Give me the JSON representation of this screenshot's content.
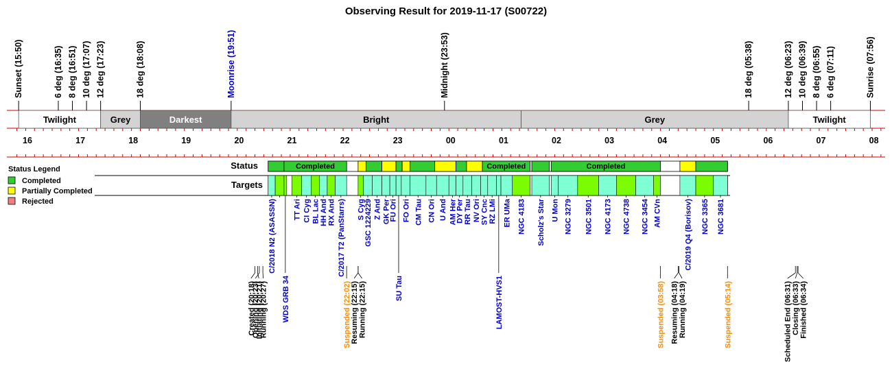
{
  "chart_data": {
    "type": "timeline",
    "title": "Observing Result for 2019-11-17 (S00722)",
    "night_events": [
      {
        "label": "Sunset (15:50)",
        "time": "15:50",
        "color": "#000000"
      },
      {
        "label": "6 deg (16:35)",
        "time": "16:35",
        "color": "#000000"
      },
      {
        "label": "8 deg (16:51)",
        "time": "16:51",
        "color": "#000000"
      },
      {
        "label": "10 deg (17:07)",
        "time": "17:07",
        "color": "#000000"
      },
      {
        "label": "12 deg (17:23)",
        "time": "17:23",
        "color": "#000000"
      },
      {
        "label": "18 deg (18:08)",
        "time": "18:08",
        "color": "#000000"
      },
      {
        "label": "Moonrise (19:51)",
        "time": "19:51",
        "color": "#0000cc"
      },
      {
        "label": "Midnight (23:53)",
        "time": "23:53",
        "color": "#000000"
      },
      {
        "label": "18 deg (05:38)",
        "time": "29:38",
        "color": "#000000"
      },
      {
        "label": "12 deg (06:23)",
        "time": "30:23",
        "color": "#000000"
      },
      {
        "label": "10 deg (06:39)",
        "time": "30:39",
        "color": "#000000"
      },
      {
        "label": "8 deg (06:55)",
        "time": "30:55",
        "color": "#000000"
      },
      {
        "label": "6 deg (07:11)",
        "time": "31:11",
        "color": "#000000"
      },
      {
        "label": "Sunrise (07:56)",
        "time": "31:56",
        "color": "#000000"
      }
    ],
    "sky_bands": [
      {
        "label": "Twilight",
        "start": "15:50",
        "end": "17:23",
        "color": "#ffffff",
        "text_color": "#000000"
      },
      {
        "label": "Grey",
        "start": "17:23",
        "end": "18:08",
        "color": "#d3d3d3",
        "text_color": "#000000"
      },
      {
        "label": "Darkest",
        "start": "18:08",
        "end": "19:51",
        "color": "#808080",
        "text_color": "#ffffff"
      },
      {
        "label": "Bright",
        "start": "19:51",
        "end": "25:20",
        "color": "#d3d3d3",
        "text_color": "#000000"
      },
      {
        "label": "Grey",
        "start": "25:20",
        "end": "30:23",
        "color": "#d3d3d3",
        "text_color": "#000000"
      },
      {
        "label": "Twilight",
        "start": "30:23",
        "end": "31:56",
        "color": "#ffffff",
        "text_color": "#000000"
      }
    ],
    "hour_ticks": [
      "16",
      "17",
      "18",
      "19",
      "20",
      "21",
      "22",
      "23",
      "00",
      "01",
      "02",
      "03",
      "04",
      "05",
      "06",
      "07",
      "08"
    ],
    "row_labels": {
      "status": "Status",
      "targets": "Targets"
    },
    "legend": {
      "title": "Status Legend",
      "items": [
        {
          "label": "Completed",
          "color": "#33cc33"
        },
        {
          "label": "Partially Completed",
          "color": "#ffff00"
        },
        {
          "label": "Rejected",
          "color": "#f08080"
        }
      ]
    },
    "status_segments": [
      {
        "start": "20:33",
        "end": "20:51",
        "status": "completed",
        "label": ""
      },
      {
        "start": "20:51",
        "end": "22:02",
        "status": "completed",
        "label": "Completed"
      },
      {
        "start": "22:15",
        "end": "22:24",
        "status": "partial",
        "label": ""
      },
      {
        "start": "22:24",
        "end": "22:42",
        "status": "completed",
        "label": ""
      },
      {
        "start": "22:42",
        "end": "22:58",
        "status": "partial",
        "label": ""
      },
      {
        "start": "22:58",
        "end": "23:05",
        "status": "completed",
        "label": ""
      },
      {
        "start": "23:05",
        "end": "23:14",
        "status": "partial",
        "label": ""
      },
      {
        "start": "23:14",
        "end": "23:42",
        "status": "completed",
        "label": ""
      },
      {
        "start": "23:42",
        "end": "24:06",
        "status": "partial",
        "label": ""
      },
      {
        "start": "24:06",
        "end": "24:18",
        "status": "completed",
        "label": ""
      },
      {
        "start": "24:18",
        "end": "24:36",
        "status": "partial",
        "label": ""
      },
      {
        "start": "24:36",
        "end": "25:30",
        "status": "completed",
        "label": "Completed"
      },
      {
        "start": "25:32",
        "end": "25:52",
        "status": "completed",
        "label": ""
      },
      {
        "start": "25:54",
        "end": "27:58",
        "status": "completed",
        "label": "Completed"
      },
      {
        "start": "28:20",
        "end": "28:38",
        "status": "partial",
        "label": ""
      },
      {
        "start": "28:38",
        "end": "29:14",
        "status": "completed",
        "label": ""
      }
    ],
    "targets": [
      {
        "name": "C/2018 N2 (ASASSN)",
        "start": "20:33",
        "end": "20:41",
        "kind": "cyan"
      },
      {
        "name": "",
        "start": "20:41",
        "end": "20:51",
        "kind": "green"
      },
      {
        "name": "WDS GRB 34",
        "start": "20:51",
        "end": "20:54",
        "kind": "green",
        "long": true
      },
      {
        "name": "TT Ari",
        "start": "21:00",
        "end": "21:11",
        "kind": "green"
      },
      {
        "name": "CI Cyg",
        "start": "21:11",
        "end": "21:22",
        "kind": "cyan"
      },
      {
        "name": "BL Lac",
        "start": "21:22",
        "end": "21:31",
        "kind": "green"
      },
      {
        "name": "HH And",
        "start": "21:31",
        "end": "21:40",
        "kind": "cyan"
      },
      {
        "name": "RX And",
        "start": "21:40",
        "end": "21:49",
        "kind": "green"
      },
      {
        "name": "C/2017 T2 (PanStarrs)",
        "start": "21:49",
        "end": "22:02",
        "kind": "cyan"
      },
      {
        "name": "S Cyg",
        "start": "22:15",
        "end": "22:21",
        "kind": "green"
      },
      {
        "name": "GSC 1224229",
        "start": "22:21",
        "end": "22:31",
        "kind": "cyan"
      },
      {
        "name": "Z And",
        "start": "22:31",
        "end": "22:42",
        "kind": "cyan"
      },
      {
        "name": "GK Per",
        "start": "22:42",
        "end": "22:51",
        "kind": "cyan"
      },
      {
        "name": "FU Ori",
        "start": "22:51",
        "end": "22:58",
        "kind": "cyan"
      },
      {
        "name": "SU Tau",
        "start": "22:58",
        "end": "23:04",
        "kind": "cyan",
        "long": true
      },
      {
        "name": "FO Ori",
        "start": "23:04",
        "end": "23:14",
        "kind": "cyan"
      },
      {
        "name": "CM Tau",
        "start": "23:14",
        "end": "23:32",
        "kind": "cyan"
      },
      {
        "name": "CN Ori",
        "start": "23:32",
        "end": "23:44",
        "kind": "cyan"
      },
      {
        "name": "U And",
        "start": "23:44",
        "end": "23:58",
        "kind": "cyan"
      },
      {
        "name": "AM Her",
        "start": "23:58",
        "end": "24:06",
        "kind": "cyan"
      },
      {
        "name": "DY Per",
        "start": "24:06",
        "end": "24:14",
        "kind": "cyan"
      },
      {
        "name": "RR Tau",
        "start": "24:14",
        "end": "24:24",
        "kind": "cyan"
      },
      {
        "name": "NV Ori",
        "start": "24:24",
        "end": "24:34",
        "kind": "cyan"
      },
      {
        "name": "SY Cnc",
        "start": "24:34",
        "end": "24:42",
        "kind": "cyan"
      },
      {
        "name": "RZ LMi",
        "start": "24:42",
        "end": "24:52",
        "kind": "cyan"
      },
      {
        "name": "LAMOST-HVS1",
        "start": "24:52",
        "end": "24:57",
        "kind": "cyan",
        "long": true
      },
      {
        "name": "ER UMa",
        "start": "24:57",
        "end": "25:10",
        "kind": "cyan"
      },
      {
        "name": "NGC 4183",
        "start": "25:10",
        "end": "25:30",
        "kind": "green"
      },
      {
        "name": "Scholz's Star",
        "start": "25:32",
        "end": "25:52",
        "kind": "cyan"
      },
      {
        "name": "U Mon",
        "start": "25:54",
        "end": "26:02",
        "kind": "cyan"
      },
      {
        "name": "NGC 3279",
        "start": "26:02",
        "end": "26:24",
        "kind": "cyan"
      },
      {
        "name": "NGC 3501",
        "start": "26:24",
        "end": "26:48",
        "kind": "green"
      },
      {
        "name": "NGC 4173",
        "start": "26:48",
        "end": "27:08",
        "kind": "cyan"
      },
      {
        "name": "NGC 4738",
        "start": "27:08",
        "end": "27:30",
        "kind": "green"
      },
      {
        "name": "NGC 3454",
        "start": "27:30",
        "end": "27:50",
        "kind": "cyan"
      },
      {
        "name": "AM CVn",
        "start": "27:50",
        "end": "27:58",
        "kind": "green"
      },
      {
        "name": "C/2019 Q4 (Borisov)",
        "start": "28:20",
        "end": "28:38",
        "kind": "cyan"
      },
      {
        "name": "NGC 3365",
        "start": "28:38",
        "end": "28:58",
        "kind": "green"
      },
      {
        "name": "NGC 3681",
        "start": "28:58",
        "end": "29:14",
        "kind": "cyan"
      }
    ],
    "events_bottom": [
      {
        "label": "Created (20:18)",
        "time": "20:18",
        "color": "#000000"
      },
      {
        "label": "Initiating (20:21)",
        "time": "20:21",
        "color": "#000000"
      },
      {
        "label": "Opening (20:23)",
        "time": "20:23",
        "color": "#000000"
      },
      {
        "label": "Running (20:27)",
        "time": "20:27",
        "color": "#000000"
      },
      {
        "label": "Suspended (22:02)",
        "time": "22:02",
        "color": "#ff8c00"
      },
      {
        "label": "Resuming (22:15)",
        "time": "22:15",
        "color": "#000000"
      },
      {
        "label": "Running (22:15)",
        "time": "22:15",
        "color": "#000000"
      },
      {
        "label": "Suspended (03:58)",
        "time": "27:58",
        "color": "#ff8c00"
      },
      {
        "label": "Resuming (04:18)",
        "time": "28:18",
        "color": "#000000"
      },
      {
        "label": "Running (04:19)",
        "time": "28:19",
        "color": "#000000"
      },
      {
        "label": "Suspended (05:14)",
        "time": "29:14",
        "color": "#ff8c00"
      },
      {
        "label": "Scheduled End (06:31)",
        "time": "30:31",
        "color": "#000000"
      },
      {
        "label": "Closing (06:33)",
        "time": "30:33",
        "color": "#000000"
      },
      {
        "label": "Finished (06:34)",
        "time": "30:34",
        "color": "#000000"
      }
    ],
    "colors": {
      "axis": "#cc0000",
      "completed": "#33cc33",
      "partial": "#ffff00",
      "target_green": "#7cfc00",
      "target_cyan": "#7fffd4",
      "target_text": "#0000cc"
    }
  }
}
